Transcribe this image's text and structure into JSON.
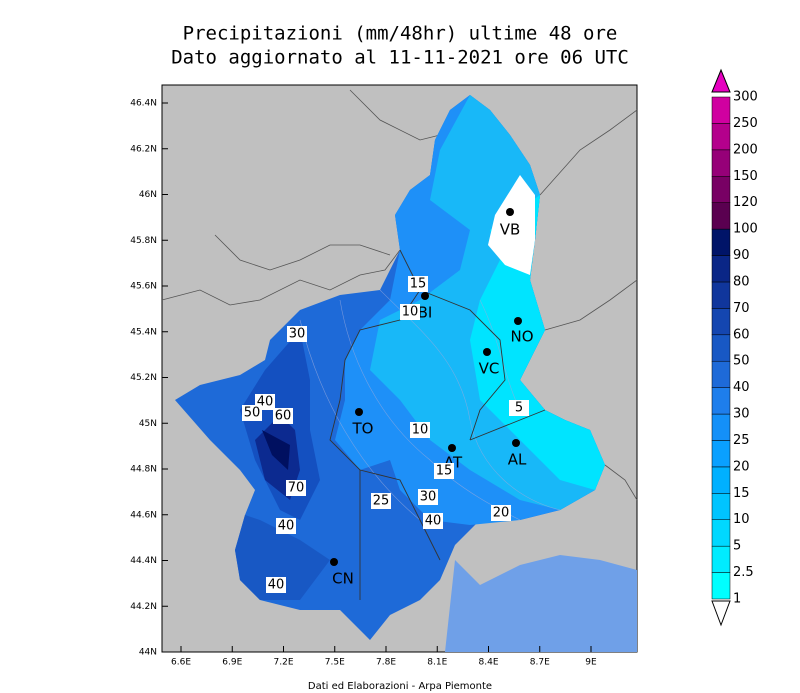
{
  "header": {
    "title": "Precipitazioni (mm/48hr) ultime 48 ore",
    "subtitle": "Dato aggiornato al 11-11-2021 ore 06 UTC"
  },
  "map": {
    "lat_ticks": [
      "46.4N",
      "46.2N",
      "46N",
      "45.8N",
      "45.6N",
      "45.4N",
      "45.2N",
      "45N",
      "44.8N",
      "44.6N",
      "44.4N",
      "44.2N",
      "44N"
    ],
    "lon_ticks": [
      "6.6E",
      "6.9E",
      "7.2E",
      "7.5E",
      "7.8E",
      "8.1E",
      "8.4E",
      "8.7E",
      "9E"
    ],
    "cities": [
      "VB",
      "BI",
      "NO",
      "VC",
      "TO",
      "AT",
      "AL",
      "CN"
    ],
    "contour_labels": [
      "15",
      "10",
      "30",
      "40",
      "50",
      "60",
      "10",
      "70",
      "25",
      "30",
      "40",
      "40",
      "20",
      "40",
      "5",
      "15"
    ]
  },
  "legend": {
    "levels": [
      "1",
      "2.5",
      "5",
      "10",
      "15",
      "20",
      "25",
      "30",
      "40",
      "50",
      "60",
      "70",
      "80",
      "90",
      "100",
      "120",
      "150",
      "200",
      "250",
      "300"
    ],
    "colors": [
      "#00ffff",
      "#00ecff",
      "#00d8ff",
      "#00c4ff",
      "#00b0ff",
      "#0aa0ff",
      "#1490f8",
      "#1e7eec",
      "#1e6ad8",
      "#1858c4",
      "#1446b0",
      "#10369c",
      "#0a2686",
      "#001468",
      "#5a0050",
      "#780064",
      "#960078",
      "#b4008c",
      "#d000a0"
    ],
    "under_color": "#ffffff",
    "over_color": "#e600c0"
  },
  "footer": "Dati ed Elaborazioni - Arpa Piemonte"
}
